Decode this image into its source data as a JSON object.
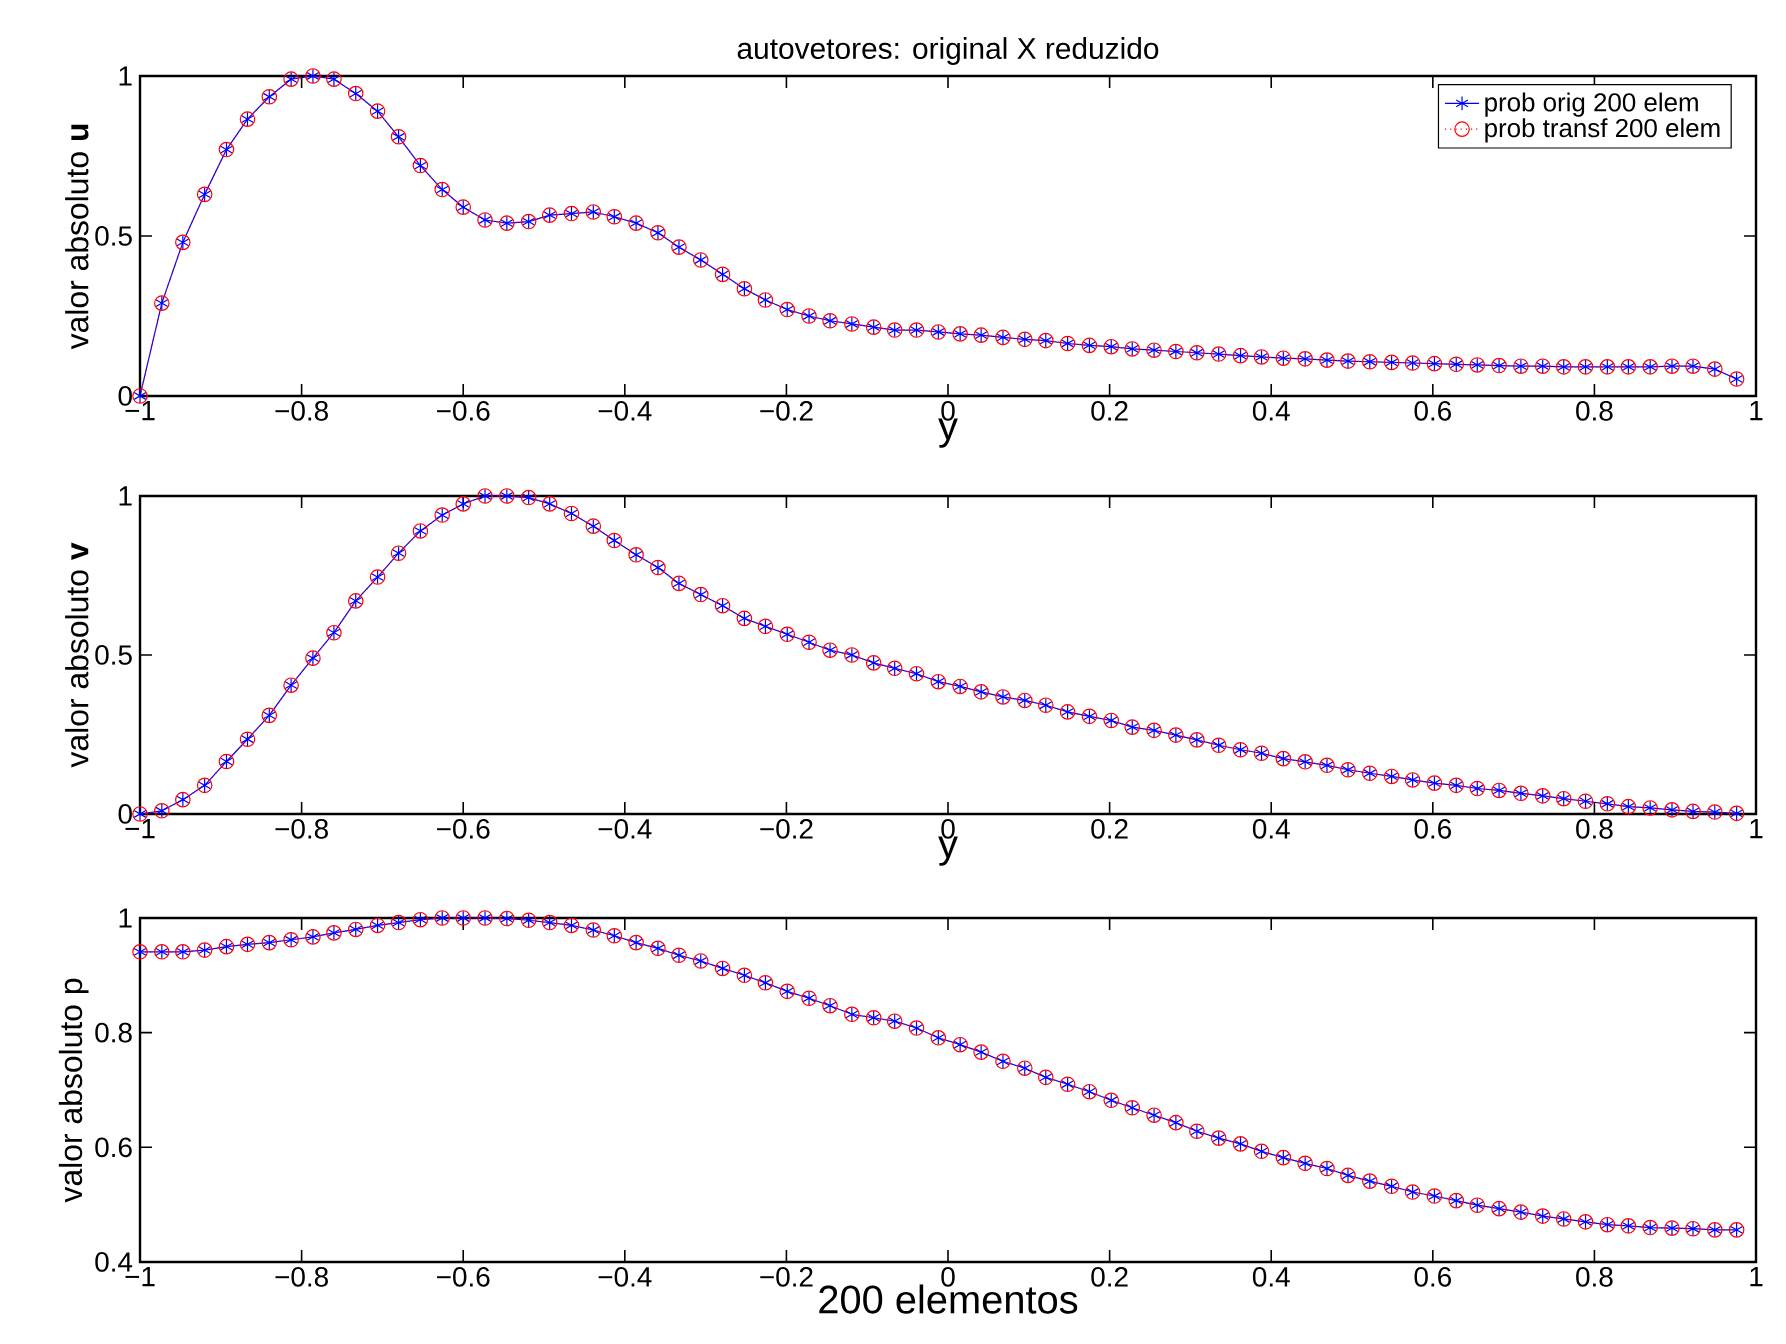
{
  "chart_data": [
    {
      "type": "line",
      "title": "autovetores: original   X   reduzido",
      "xlabel": "y",
      "ylabel": "valor absoluto  **u**",
      "legend": "top right",
      "x": [
        -1,
        -0.973,
        -0.947,
        -0.92,
        -0.893,
        -0.867,
        -0.84,
        -0.813,
        -0.786,
        -0.76,
        -0.733,
        -0.706,
        -0.68,
        -0.653,
        -0.626,
        -0.6,
        -0.573,
        -0.546,
        -0.519,
        -0.493,
        -0.466,
        -0.439,
        -0.413,
        -0.386,
        -0.359,
        -0.333,
        -0.306,
        -0.279,
        -0.252,
        -0.226,
        -0.199,
        -0.172,
        -0.146,
        -0.119,
        -0.092,
        -0.066,
        -0.039,
        -0.012,
        0.015,
        0.041,
        0.068,
        0.095,
        0.121,
        0.148,
        0.175,
        0.202,
        0.228,
        0.255,
        0.282,
        0.308,
        0.335,
        0.362,
        0.388,
        0.415,
        0.442,
        0.469,
        0.495,
        0.522,
        0.549,
        0.575,
        0.602,
        0.629,
        0.655,
        0.682,
        0.709,
        0.736,
        0.762,
        0.789,
        0.816,
        0.842,
        0.869,
        0.896,
        0.922,
        0.949,
        0.976
      ],
      "xlim": [
        -1,
        1
      ],
      "xticks": [
        {
          "value": -1,
          "label": "−1"
        },
        {
          "value": -0.8,
          "label": "−0.8"
        },
        {
          "value": -0.6,
          "label": "−0.6"
        },
        {
          "value": -0.4,
          "label": "−0.4"
        },
        {
          "value": -0.2,
          "label": "−0.2"
        },
        0,
        0.2,
        0.4,
        0.6,
        0.8,
        1
      ],
      "ylim": [
        0,
        1
      ],
      "yticks": [
        0,
        0.5,
        1
      ],
      "series": [
        {
          "name": "prob orig 200 elem",
          "color": "#0000ff",
          "marker": "cross",
          "line_style": "solid",
          "values": [
            0,
            0.29,
            0.48,
            0.63,
            0.77,
            0.865,
            0.935,
            0.99,
            1.0,
            0.99,
            0.945,
            0.89,
            0.81,
            0.72,
            0.645,
            0.59,
            0.55,
            0.54,
            0.545,
            0.565,
            0.57,
            0.575,
            0.56,
            0.54,
            0.51,
            0.465,
            0.425,
            0.38,
            0.335,
            0.3,
            0.27,
            0.25,
            0.235,
            0.225,
            0.215,
            0.206,
            0.206,
            0.2,
            0.194,
            0.19,
            0.183,
            0.177,
            0.173,
            0.164,
            0.158,
            0.154,
            0.147,
            0.143,
            0.139,
            0.135,
            0.131,
            0.126,
            0.122,
            0.118,
            0.116,
            0.112,
            0.109,
            0.107,
            0.105,
            0.103,
            0.101,
            0.099,
            0.097,
            0.095,
            0.093,
            0.093,
            0.091,
            0.091,
            0.091,
            0.091,
            0.091,
            0.093,
            0.093,
            0.084,
            0.053
          ]
        },
        {
          "name": "prob transf 200 elem",
          "color": "#ff0000",
          "marker": "circle",
          "line_style": "dotted",
          "values": [
            0,
            0.29,
            0.48,
            0.63,
            0.77,
            0.865,
            0.935,
            0.99,
            1.0,
            0.99,
            0.945,
            0.89,
            0.81,
            0.72,
            0.645,
            0.59,
            0.55,
            0.54,
            0.545,
            0.565,
            0.57,
            0.575,
            0.56,
            0.54,
            0.51,
            0.465,
            0.425,
            0.38,
            0.335,
            0.3,
            0.27,
            0.25,
            0.235,
            0.225,
            0.215,
            0.206,
            0.206,
            0.2,
            0.194,
            0.19,
            0.183,
            0.177,
            0.173,
            0.164,
            0.158,
            0.154,
            0.147,
            0.143,
            0.139,
            0.135,
            0.131,
            0.126,
            0.122,
            0.118,
            0.116,
            0.112,
            0.109,
            0.107,
            0.105,
            0.103,
            0.101,
            0.099,
            0.097,
            0.095,
            0.093,
            0.093,
            0.091,
            0.091,
            0.091,
            0.091,
            0.091,
            0.093,
            0.093,
            0.084,
            0.053
          ]
        }
      ]
    },
    {
      "type": "line",
      "xlabel": "y",
      "ylabel": "valor absoluto  **v**",
      "x": [
        -1,
        -0.973,
        -0.947,
        -0.92,
        -0.893,
        -0.867,
        -0.84,
        -0.813,
        -0.786,
        -0.76,
        -0.733,
        -0.706,
        -0.68,
        -0.653,
        -0.626,
        -0.6,
        -0.573,
        -0.546,
        -0.519,
        -0.493,
        -0.466,
        -0.439,
        -0.413,
        -0.386,
        -0.359,
        -0.333,
        -0.306,
        -0.279,
        -0.252,
        -0.226,
        -0.199,
        -0.172,
        -0.146,
        -0.119,
        -0.092,
        -0.066,
        -0.039,
        -0.012,
        0.015,
        0.041,
        0.068,
        0.095,
        0.121,
        0.148,
        0.175,
        0.202,
        0.228,
        0.255,
        0.282,
        0.308,
        0.335,
        0.362,
        0.388,
        0.415,
        0.442,
        0.469,
        0.495,
        0.522,
        0.549,
        0.575,
        0.602,
        0.629,
        0.655,
        0.682,
        0.709,
        0.736,
        0.762,
        0.789,
        0.816,
        0.842,
        0.869,
        0.896,
        0.922,
        0.949,
        0.976
      ],
      "xlim": [
        -1,
        1
      ],
      "xticks": [
        {
          "value": -1,
          "label": "−1"
        },
        {
          "value": -0.8,
          "label": "−0.8"
        },
        {
          "value": -0.6,
          "label": "−0.6"
        },
        {
          "value": -0.4,
          "label": "−0.4"
        },
        {
          "value": -0.2,
          "label": "−0.2"
        },
        0,
        0.2,
        0.4,
        0.6,
        0.8,
        1
      ],
      "ylim": [
        0,
        1
      ],
      "yticks": [
        0,
        0.5,
        1
      ],
      "series": [
        {
          "color": "#0000ff",
          "marker": "cross",
          "line_style": "solid",
          "values": [
            0,
            0.01,
            0.045,
            0.09,
            0.165,
            0.235,
            0.31,
            0.405,
            0.49,
            0.57,
            0.67,
            0.745,
            0.82,
            0.89,
            0.94,
            0.975,
            1.0,
            1.0,
            0.995,
            0.975,
            0.945,
            0.905,
            0.86,
            0.815,
            0.775,
            0.725,
            0.69,
            0.655,
            0.615,
            0.59,
            0.565,
            0.54,
            0.515,
            0.5,
            0.475,
            0.458,
            0.441,
            0.416,
            0.401,
            0.384,
            0.368,
            0.357,
            0.342,
            0.321,
            0.307,
            0.294,
            0.273,
            0.263,
            0.248,
            0.233,
            0.216,
            0.202,
            0.191,
            0.174,
            0.164,
            0.153,
            0.139,
            0.128,
            0.118,
            0.107,
            0.097,
            0.09,
            0.08,
            0.074,
            0.065,
            0.057,
            0.048,
            0.04,
            0.032,
            0.023,
            0.019,
            0.013,
            0.008,
            0.006,
            0.002
          ]
        },
        {
          "color": "#ff0000",
          "marker": "circle",
          "line_style": "dotted",
          "values": [
            0,
            0.01,
            0.045,
            0.09,
            0.165,
            0.235,
            0.31,
            0.405,
            0.49,
            0.57,
            0.67,
            0.745,
            0.82,
            0.89,
            0.94,
            0.975,
            1.0,
            1.0,
            0.995,
            0.975,
            0.945,
            0.905,
            0.86,
            0.815,
            0.775,
            0.725,
            0.69,
            0.655,
            0.615,
            0.59,
            0.565,
            0.54,
            0.515,
            0.5,
            0.475,
            0.458,
            0.441,
            0.416,
            0.401,
            0.384,
            0.368,
            0.357,
            0.342,
            0.321,
            0.307,
            0.294,
            0.273,
            0.263,
            0.248,
            0.233,
            0.216,
            0.202,
            0.191,
            0.174,
            0.164,
            0.153,
            0.139,
            0.128,
            0.118,
            0.107,
            0.097,
            0.09,
            0.08,
            0.074,
            0.065,
            0.057,
            0.048,
            0.04,
            0.032,
            0.023,
            0.019,
            0.013,
            0.008,
            0.006,
            0.002
          ]
        }
      ]
    },
    {
      "type": "line",
      "xlabel": "200 elementos",
      "ylabel": "valor absoluto  p",
      "x": [
        -1,
        -0.973,
        -0.947,
        -0.92,
        -0.893,
        -0.867,
        -0.84,
        -0.813,
        -0.786,
        -0.76,
        -0.733,
        -0.706,
        -0.68,
        -0.653,
        -0.626,
        -0.6,
        -0.573,
        -0.546,
        -0.519,
        -0.493,
        -0.466,
        -0.439,
        -0.413,
        -0.386,
        -0.359,
        -0.333,
        -0.306,
        -0.279,
        -0.252,
        -0.226,
        -0.199,
        -0.172,
        -0.146,
        -0.119,
        -0.092,
        -0.066,
        -0.039,
        -0.012,
        0.015,
        0.041,
        0.068,
        0.095,
        0.121,
        0.148,
        0.175,
        0.202,
        0.228,
        0.255,
        0.282,
        0.308,
        0.335,
        0.362,
        0.388,
        0.415,
        0.442,
        0.469,
        0.495,
        0.522,
        0.549,
        0.575,
        0.602,
        0.629,
        0.655,
        0.682,
        0.709,
        0.736,
        0.762,
        0.789,
        0.816,
        0.842,
        0.869,
        0.896,
        0.922,
        0.949,
        0.976
      ],
      "xlim": [
        -1,
        1
      ],
      "xticks": [
        {
          "value": -1,
          "label": "−1"
        },
        {
          "value": -0.8,
          "label": "−0.8"
        },
        {
          "value": -0.6,
          "label": "−0.6"
        },
        {
          "value": -0.4,
          "label": "−0.4"
        },
        {
          "value": -0.2,
          "label": "−0.2"
        },
        0,
        0.2,
        0.4,
        0.6,
        0.8,
        1
      ],
      "ylim": [
        0.4,
        1
      ],
      "yticks": [
        0.4,
        0.6,
        0.8,
        1
      ],
      "series": [
        {
          "color": "#0000ff",
          "marker": "cross",
          "line_style": "solid",
          "values": [
            0.941,
            0.941,
            0.941,
            0.944,
            0.95,
            0.954,
            0.957,
            0.962,
            0.967,
            0.974,
            0.98,
            0.987,
            0.992,
            0.997,
            1.0,
            1.0,
            1.0,
            0.999,
            0.996,
            0.992,
            0.987,
            0.979,
            0.969,
            0.957,
            0.947,
            0.935,
            0.925,
            0.912,
            0.9,
            0.887,
            0.872,
            0.86,
            0.847,
            0.832,
            0.826,
            0.82,
            0.808,
            0.791,
            0.779,
            0.766,
            0.75,
            0.738,
            0.722,
            0.71,
            0.697,
            0.682,
            0.669,
            0.656,
            0.643,
            0.628,
            0.616,
            0.606,
            0.593,
            0.582,
            0.572,
            0.563,
            0.551,
            0.541,
            0.532,
            0.522,
            0.515,
            0.507,
            0.499,
            0.493,
            0.487,
            0.48,
            0.475,
            0.47,
            0.465,
            0.463,
            0.46,
            0.459,
            0.458,
            0.456,
            0.456
          ]
        },
        {
          "color": "#ff0000",
          "marker": "circle",
          "line_style": "dotted",
          "values": [
            0.941,
            0.941,
            0.941,
            0.944,
            0.95,
            0.954,
            0.957,
            0.962,
            0.967,
            0.974,
            0.98,
            0.987,
            0.992,
            0.997,
            1.0,
            1.0,
            1.0,
            0.999,
            0.996,
            0.992,
            0.987,
            0.979,
            0.969,
            0.957,
            0.947,
            0.935,
            0.925,
            0.912,
            0.9,
            0.887,
            0.872,
            0.86,
            0.847,
            0.832,
            0.826,
            0.82,
            0.808,
            0.791,
            0.779,
            0.766,
            0.75,
            0.738,
            0.722,
            0.71,
            0.697,
            0.682,
            0.669,
            0.656,
            0.643,
            0.628,
            0.616,
            0.606,
            0.593,
            0.582,
            0.572,
            0.563,
            0.551,
            0.541,
            0.532,
            0.522,
            0.515,
            0.507,
            0.499,
            0.493,
            0.487,
            0.48,
            0.475,
            0.47,
            0.465,
            0.463,
            0.46,
            0.459,
            0.458,
            0.456,
            0.456
          ]
        }
      ]
    }
  ]
}
